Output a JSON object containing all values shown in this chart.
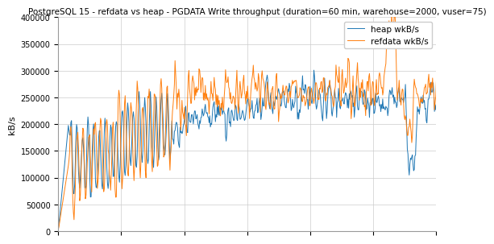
{
  "title": "PostgreSQL 15 - refdata vs heap - PGDATA Write throughput (duration=60 min, warehouse=2000, vuser=75)",
  "ylabel": "kB/s",
  "ylim": [
    0,
    400000
  ],
  "yticks": [
    0,
    50000,
    100000,
    150000,
    200000,
    250000,
    300000,
    350000,
    400000
  ],
  "legend_heap": "heap wkB/s",
  "legend_refdata": "refdata wkB/s",
  "heap_color": "#1f77b4",
  "refdata_color": "#ff7f0e",
  "background_color": "#ffffff",
  "grid_color": "#cccccc",
  "title_fontsize": 7.5,
  "label_fontsize": 8,
  "tick_fontsize": 7,
  "legend_fontsize": 7.5,
  "n_points": 600,
  "duration_min": 60
}
